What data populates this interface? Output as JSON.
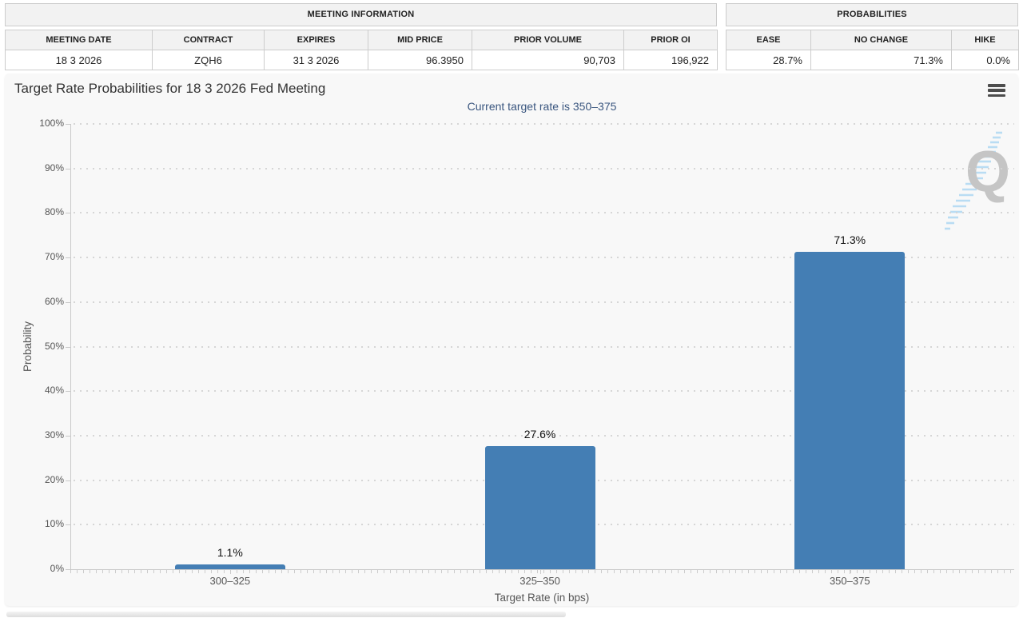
{
  "meeting_information": {
    "title": "MEETING INFORMATION",
    "columns": [
      "MEETING DATE",
      "CONTRACT",
      "EXPIRES",
      "MID PRICE",
      "PRIOR VOLUME",
      "PRIOR OI"
    ],
    "values": [
      "18 3 2026",
      "ZQH6",
      "31 3 2026",
      "96.3950",
      "90,703",
      "196,922"
    ]
  },
  "probabilities_summary": {
    "title": "PROBABILITIES",
    "columns": [
      "EASE",
      "NO CHANGE",
      "HIKE"
    ],
    "values": [
      "28.7%",
      "71.3%",
      "0.0%"
    ]
  },
  "chart": {
    "menu_icon": "hamburger-menu-icon",
    "watermark_letter": "Q"
  },
  "chart_data": {
    "type": "bar",
    "title": "Target Rate Probabilities for 18 3 2026 Fed Meeting",
    "subtitle": "Current target rate is 350–375",
    "categories": [
      "300–325",
      "325–350",
      "350–375"
    ],
    "values": [
      1.1,
      27.6,
      71.3
    ],
    "value_labels": [
      "1.1%",
      "27.6%",
      "71.3%"
    ],
    "xlabel": "Target Rate (in bps)",
    "ylabel": "Probability",
    "ylim": [
      0,
      100
    ],
    "yticks": [
      0,
      10,
      20,
      30,
      40,
      50,
      60,
      70,
      80,
      90,
      100
    ],
    "ytick_suffix": "%",
    "grid": "dotted-horizontal",
    "legend": "none",
    "bar_color": "#447eb4",
    "subtitle_color": "#3a567f",
    "title_color": "#333333"
  }
}
